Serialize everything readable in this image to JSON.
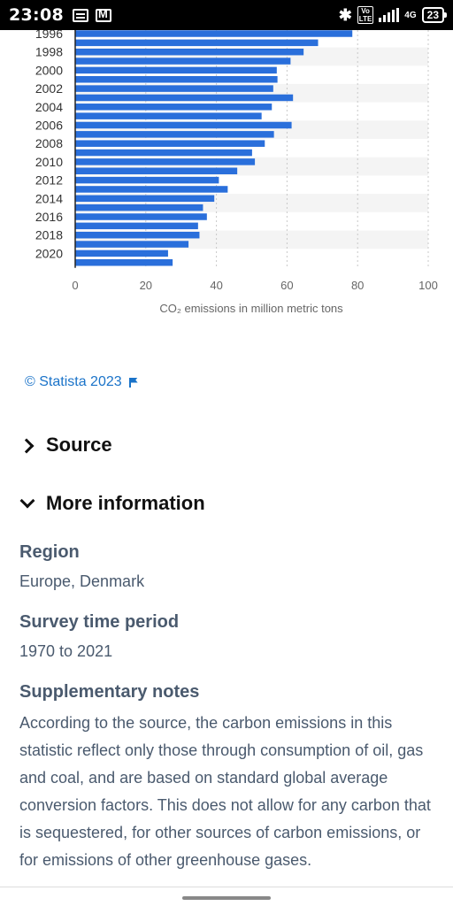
{
  "status_bar": {
    "time": "23:08",
    "battery": "23",
    "volte": "Vo\nLTE",
    "network": "4G"
  },
  "chart_data": {
    "type": "bar",
    "orientation": "horizontal",
    "xlabel": "CO₂ emissions in million metric tons",
    "xlim": [
      0,
      100
    ],
    "x_ticks": [
      0,
      20,
      40,
      60,
      80,
      100
    ],
    "grid": true,
    "categories": [
      "1996",
      "1997",
      "1998",
      "1999",
      "2000",
      "2001",
      "2002",
      "2003",
      "2004",
      "2005",
      "2006",
      "2007",
      "2008",
      "2009",
      "2010",
      "2011",
      "2012",
      "2013",
      "2014",
      "2015",
      "2016",
      "2017",
      "2018",
      "2019",
      "2020",
      "2021"
    ],
    "tick_labels": [
      "1996",
      "1998",
      "2000",
      "2002",
      "2004",
      "2006",
      "2008",
      "2010",
      "2012",
      "2014",
      "2016",
      "2018",
      "2020"
    ],
    "values": [
      78.5,
      68.8,
      64.7,
      61.0,
      57.1,
      57.3,
      56.1,
      61.7,
      55.7,
      52.8,
      61.3,
      56.3,
      53.7,
      50.1,
      50.9,
      45.9,
      40.7,
      43.2,
      39.4,
      36.2,
      37.3,
      34.8,
      35.2,
      32.1,
      26.3,
      27.6
    ],
    "bar_color": "#2a6fdb"
  },
  "copyright": {
    "text": "© Statista 2023"
  },
  "source": {
    "label": "Source"
  },
  "more_info": {
    "label": "More information",
    "region_label": "Region",
    "region_value": "Europe, Denmark",
    "period_label": "Survey time period",
    "period_value": "1970 to 2021",
    "notes_label": "Supplementary notes",
    "notes_text": "According to the source, the carbon emissions in this statistic reflect only those through consumption of oil, gas and coal, and are based on standard global average conversion factors. This does not allow for any carbon that is sequestered, for other sources of carbon emissions, or for emissions of other greenhouse gases."
  }
}
